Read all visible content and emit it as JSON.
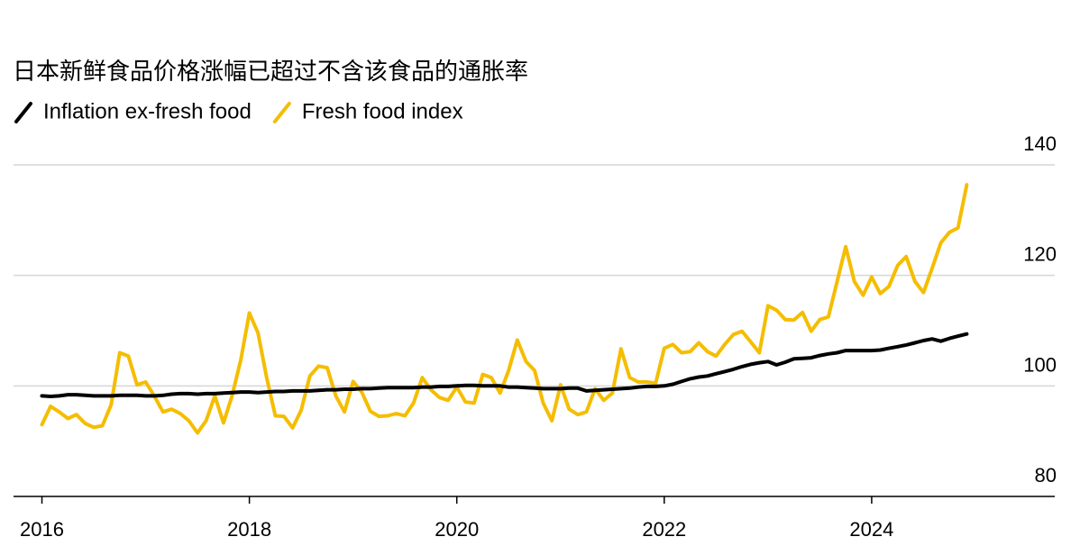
{
  "chart_data": {
    "type": "line",
    "title": "日本新鲜食品价格涨幅已超过不含该食品的通胀率",
    "legend": "top-left",
    "grid": true,
    "x": [
      2016,
      2016.083,
      2016.167,
      2016.25,
      2016.333,
      2016.417,
      2016.5,
      2016.583,
      2016.667,
      2016.75,
      2016.833,
      2016.917,
      2017,
      2017.083,
      2017.167,
      2017.25,
      2017.333,
      2017.417,
      2017.5,
      2017.583,
      2017.667,
      2017.75,
      2017.833,
      2017.917,
      2018,
      2018.083,
      2018.167,
      2018.25,
      2018.333,
      2018.417,
      2018.5,
      2018.583,
      2018.667,
      2018.75,
      2018.833,
      2018.917,
      2019,
      2019.083,
      2019.167,
      2019.25,
      2019.333,
      2019.417,
      2019.5,
      2019.583,
      2019.667,
      2019.75,
      2019.833,
      2019.917,
      2020,
      2020.083,
      2020.167,
      2020.25,
      2020.333,
      2020.417,
      2020.5,
      2020.583,
      2020.667,
      2020.75,
      2020.833,
      2020.917,
      2021,
      2021.083,
      2021.167,
      2021.25,
      2021.333,
      2021.417,
      2021.5,
      2021.583,
      2021.667,
      2021.75,
      2021.833,
      2021.917,
      2022,
      2022.083,
      2022.167,
      2022.25,
      2022.333,
      2022.417,
      2022.5,
      2022.583,
      2022.667,
      2022.75,
      2022.833,
      2022.917,
      2023,
      2023.083,
      2023.167,
      2023.25,
      2023.333,
      2023.417,
      2023.5,
      2023.583,
      2023.667,
      2023.75,
      2023.833,
      2023.917,
      2024,
      2024.083,
      2024.167,
      2024.25,
      2024.333,
      2024.417,
      2024.5,
      2024.583,
      2024.667,
      2024.75,
      2024.833,
      2024.917
    ],
    "series": [
      {
        "name": "Inflation ex-fresh food",
        "color": "#000000",
        "values": [
          98.2,
          98.1,
          98.2,
          98.4,
          98.4,
          98.3,
          98.2,
          98.2,
          98.2,
          98.3,
          98.3,
          98.3,
          98.2,
          98.2,
          98.3,
          98.5,
          98.6,
          98.6,
          98.5,
          98.6,
          98.6,
          98.7,
          98.8,
          98.9,
          98.9,
          98.8,
          98.9,
          99.0,
          99.0,
          99.1,
          99.1,
          99.1,
          99.2,
          99.3,
          99.3,
          99.4,
          99.4,
          99.5,
          99.5,
          99.6,
          99.7,
          99.7,
          99.7,
          99.7,
          99.8,
          99.8,
          99.9,
          99.9,
          100.0,
          100.1,
          100.1,
          100.0,
          100.0,
          100.0,
          99.8,
          99.8,
          99.7,
          99.6,
          99.5,
          99.5,
          99.5,
          99.6,
          99.6,
          99.1,
          99.2,
          99.3,
          99.4,
          99.5,
          99.6,
          99.8,
          99.9,
          99.9,
          100.0,
          100.3,
          100.8,
          101.3,
          101.6,
          101.8,
          102.2,
          102.6,
          103.0,
          103.5,
          103.9,
          104.2,
          104.4,
          103.8,
          104.3,
          104.9,
          105.0,
          105.1,
          105.5,
          105.8,
          106.0,
          106.4,
          106.4,
          106.4,
          106.4,
          106.5,
          106.8,
          107.1,
          107.4,
          107.8,
          108.2,
          108.5,
          108.1,
          108.6,
          109.0,
          109.4
        ]
      },
      {
        "name": "Fresh food index",
        "color": "#f5bd00",
        "values": [
          93.0,
          96.3,
          95.3,
          94.1,
          94.8,
          93.2,
          92.5,
          92.8,
          96.6,
          106.0,
          105.4,
          100.2,
          100.7,
          98.2,
          95.3,
          95.8,
          95.0,
          93.7,
          91.5,
          93.7,
          98.2,
          93.3,
          98.2,
          104.7,
          113.2,
          109.6,
          101.5,
          94.6,
          94.5,
          92.4,
          95.6,
          101.8,
          103.6,
          103.3,
          98.2,
          95.3,
          100.8,
          98.9,
          95.4,
          94.5,
          94.6,
          95.0,
          94.6,
          96.9,
          101.5,
          99.3,
          97.9,
          97.4,
          99.8,
          97.1,
          96.9,
          102.1,
          101.5,
          98.7,
          102.8,
          108.3,
          104.4,
          102.8,
          96.9,
          93.7,
          100.2,
          95.8,
          94.8,
          95.3,
          99.5,
          97.4,
          98.7,
          106.7,
          101.5,
          100.7,
          100.7,
          100.5,
          106.8,
          107.5,
          106.0,
          106.2,
          107.8,
          106.2,
          105.4,
          107.5,
          109.3,
          109.9,
          108.0,
          106.0,
          114.5,
          113.7,
          112.0,
          111.9,
          113.3,
          109.9,
          112.0,
          112.5,
          118.9,
          125.2,
          118.9,
          116.4,
          119.7,
          116.7,
          118.0,
          121.8,
          123.4,
          118.9,
          116.9,
          121.3,
          125.9,
          127.8,
          128.6,
          136.4
        ]
      }
    ],
    "xlim": [
      2015.7,
      2025.8
    ],
    "xticks": [
      2016,
      2018,
      2020,
      2022,
      2024
    ],
    "ylim": [
      80,
      140
    ],
    "yticks": [
      80,
      100,
      120,
      140
    ]
  }
}
